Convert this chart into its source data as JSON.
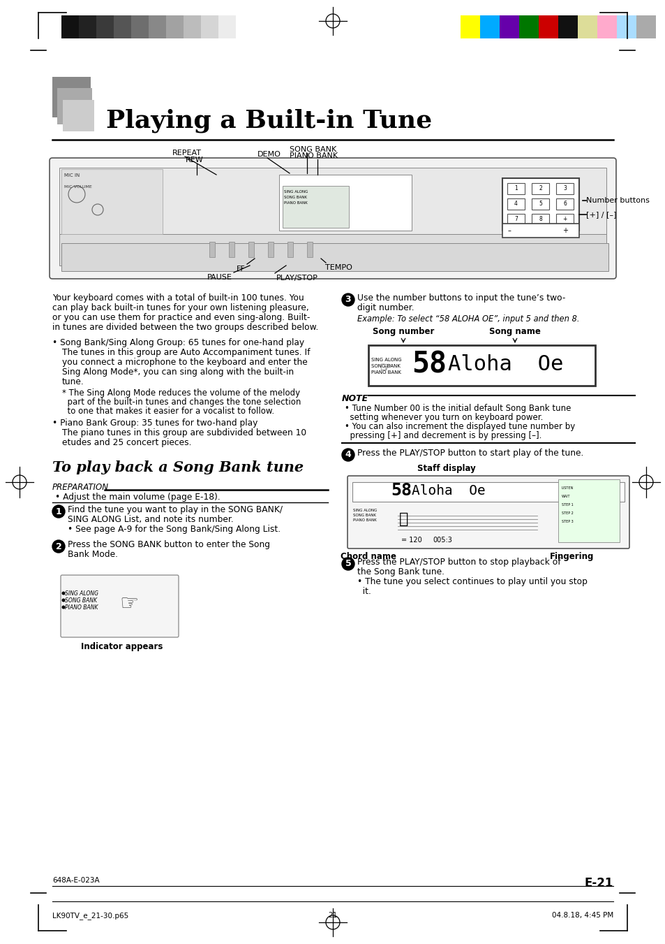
{
  "title": "Playing a Built-in Tune",
  "bg_color": "#ffffff",
  "page_number": "E-21",
  "page_number_prefix": "648A-E-023A",
  "footer_left": "LK90TV_e_21-30.p65",
  "footer_center": "21",
  "footer_right": "04.8.18, 4:45 PM",
  "color_strip_left": [
    "#111111",
    "#222222",
    "#3a3a3a",
    "#555555",
    "#6e6e6e",
    "#888888",
    "#a2a2a2",
    "#bcbcbc",
    "#d5d5d5",
    "#ececec",
    "#ffffff"
  ],
  "color_strip_right": [
    "#ffff00",
    "#00aaff",
    "#6600aa",
    "#007700",
    "#cc0000",
    "#111111",
    "#dddd99",
    "#ffaacc",
    "#aaddff",
    "#aaaaaa"
  ],
  "intro_lines": [
    "Your keyboard comes with a total of built-in 100 tunes. You",
    "can play back built-in tunes for your own listening pleasure,",
    "or you can use them for practice and even sing-along. Built-",
    "in tunes are divided between the two groups described below."
  ],
  "bullet1_line1": "Song Bank/Sing Along Group: 65 tunes for one-hand play",
  "bullet1_body": [
    "The tunes in this group are Auto Accompaniment tunes. If",
    "you connect a microphone to the keyboard and enter the",
    "Sing Along Mode*, you can sing along with the built-in",
    "tune."
  ],
  "bullet1_note": [
    "* The Sing Along Mode reduces the volume of the melody",
    "  part of the built-in tunes and changes the tone selection",
    "  to one that makes it easier for a vocalist to follow."
  ],
  "bullet2_line1": "Piano Bank Group: 35 tunes for two-hand play",
  "bullet2_body": [
    "The piano tunes in this group are subdivided between 10",
    "etudes and 25 concert pieces."
  ],
  "section_heading": "To play back a Song Bank tune",
  "preparation_label": "PREPARATION",
  "preparation_text": "Adjust the main volume (page E-18).",
  "step1_lines": [
    "Find the tune you want to play in the SONG BANK/",
    "SING ALONG List, and note its number.",
    "• See page A-9 for the Song Bank/Sing Along List."
  ],
  "step2_lines": [
    "Press the SONG BANK button to enter the Song",
    "Bank Mode."
  ],
  "indicator_label": "Indicator appears",
  "step3_lines": [
    "Use the number buttons to input the tune’s two-",
    "digit number."
  ],
  "step3_example": "Example: To select “58 ALOHA OE”, input 5 and then 8.",
  "song_number_label": "Song number",
  "song_name_label": "Song name",
  "note_label": "NOTE",
  "note_lines": [
    "• Tune Number 00 is the initial default Song Bank tune",
    "  setting whenever you turn on keyboard power.",
    "• You can also increment the displayed tune number by",
    "  pressing [+] and decrement is by pressing [–]."
  ],
  "step4_text": "Press the PLAY/STOP button to start play of the tune.",
  "staff_display_label": "Staff display",
  "fingering_label": "Fingering",
  "chord_name_label": "Chord name",
  "step5_lines": [
    "Press the PLAY/STOP button to stop playback of",
    "the Song Bank tune.",
    "• The tune you select continues to play until you stop",
    "  it."
  ]
}
